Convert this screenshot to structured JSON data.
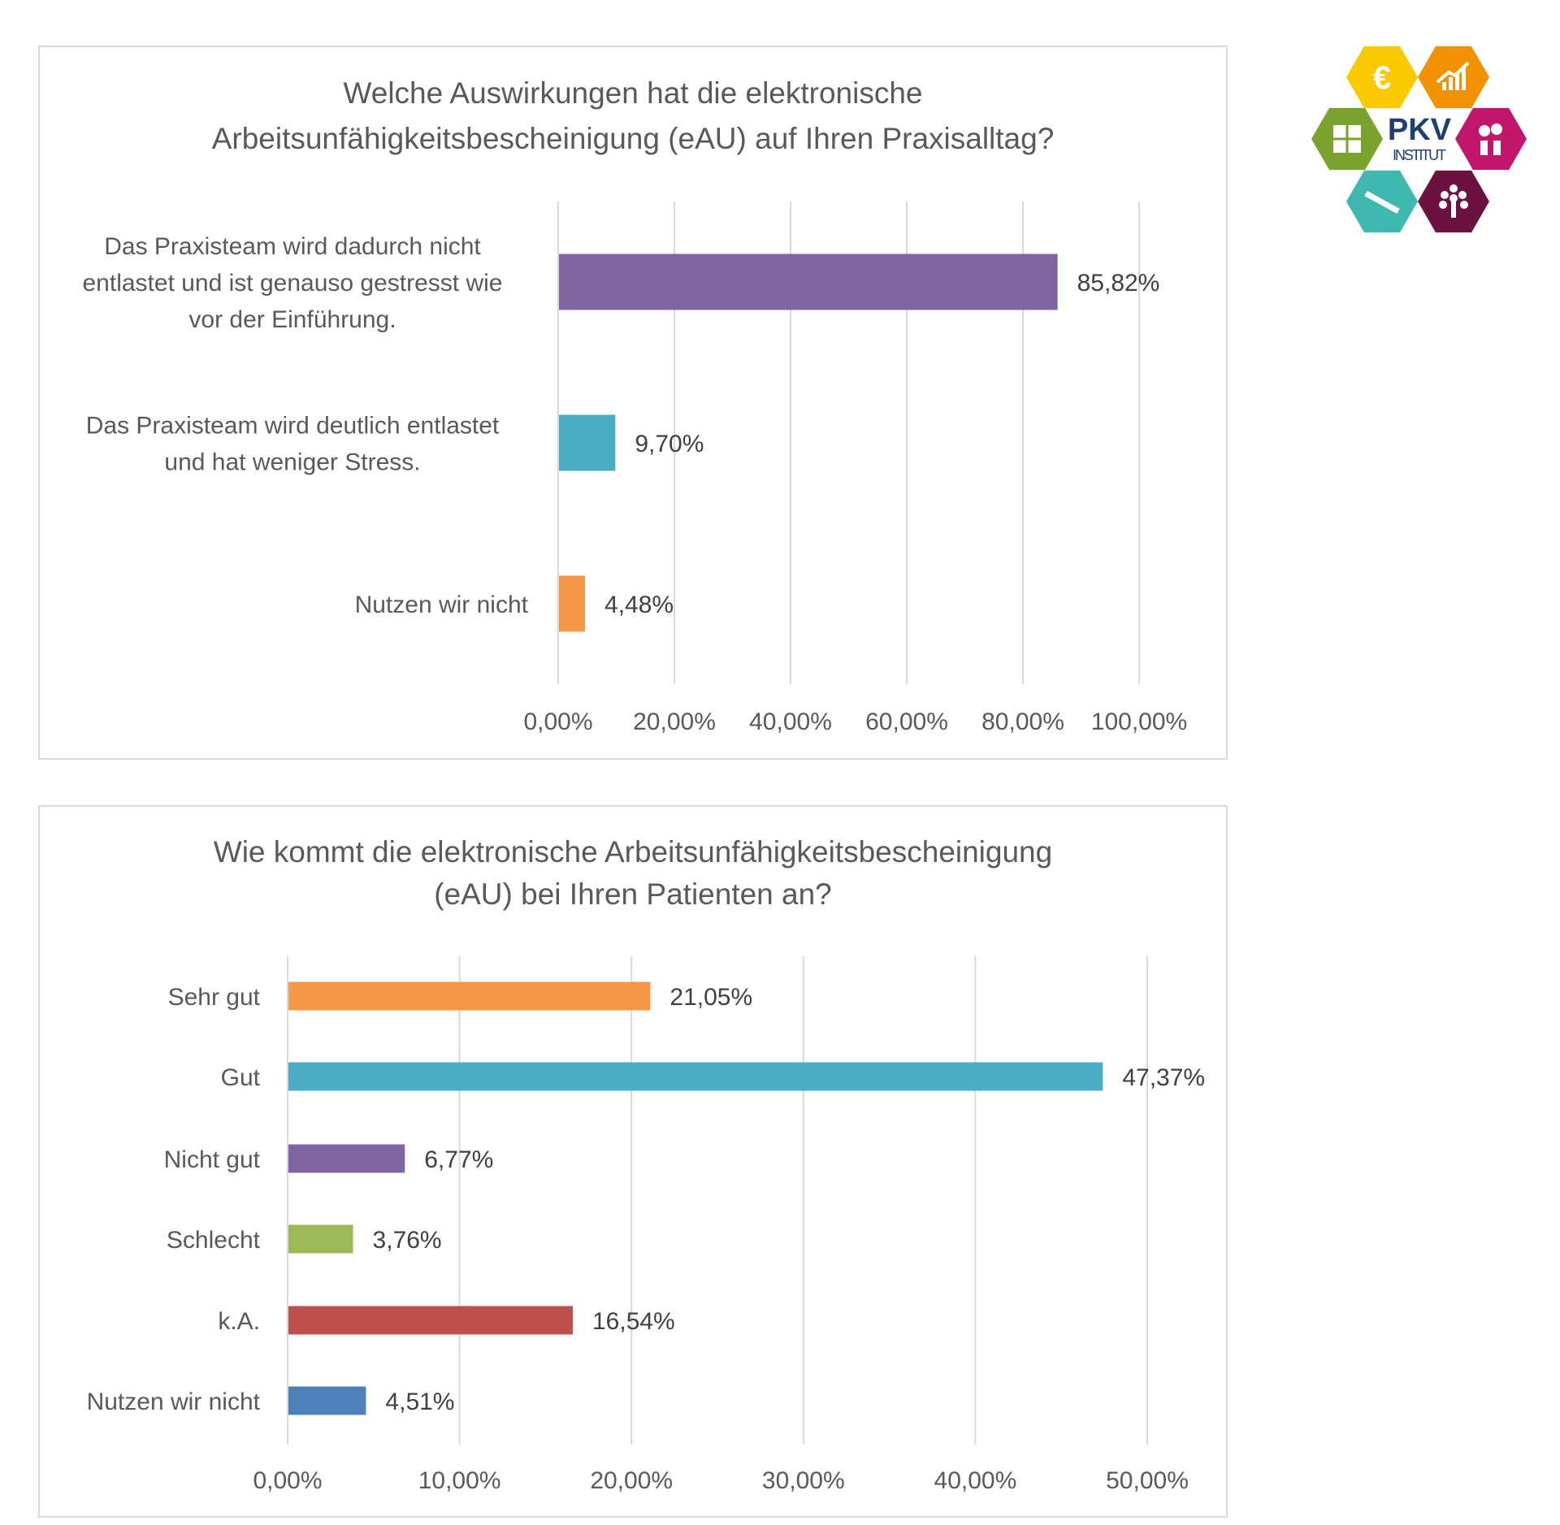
{
  "logo": {
    "text_main": "PKV",
    "text_sub": "INSTITUT",
    "icons": [
      {
        "name": "euro-icon",
        "color": "#fcc800"
      },
      {
        "name": "growth-chart-icon",
        "color": "#f39200"
      },
      {
        "name": "puzzle-icon",
        "color": "#7aa22e"
      },
      {
        "name": "people-talking-icon",
        "color": "#c2166c"
      },
      {
        "name": "syringe-icon",
        "color": "#3fb8b0"
      },
      {
        "name": "tree-icon",
        "color": "#6b1240"
      }
    ],
    "text_color": "#1f3f73"
  },
  "chart_data": [
    {
      "type": "bar",
      "orientation": "horizontal",
      "title": [
        "Welche Auswirkungen hat die elektronische",
        "Arbeitsunfähigkeitsbescheinigung (eAU) auf Ihren Praxisalltag?"
      ],
      "categories": [
        [
          "Das Praxisteam wird dadurch nicht",
          "entlastet und ist genauso gestresst wie",
          "vor der Einführung."
        ],
        [
          "Das Praxisteam wird deutlich entlastet",
          "und hat weniger Stress."
        ],
        [
          "Nutzen wir nicht"
        ]
      ],
      "values": [
        85.82,
        9.7,
        4.48
      ],
      "data_labels": [
        "85,82%",
        "9,70%",
        "4,48%"
      ],
      "colors": [
        "#8064a2",
        "#4bacc6",
        "#f79646"
      ],
      "xlim": [
        0,
        100
      ],
      "x_ticks": [
        0,
        20,
        40,
        60,
        80,
        100
      ],
      "x_tick_labels": [
        "0,00%",
        "20,00%",
        "40,00%",
        "60,00%",
        "80,00%",
        "100,00%"
      ],
      "grid": true
    },
    {
      "type": "bar",
      "orientation": "horizontal",
      "title": [
        "Wie kommt die elektronische Arbeitsunfähigkeitsbescheinigung",
        "(eAU) bei Ihren Patienten an?"
      ],
      "categories": [
        [
          "Sehr gut"
        ],
        [
          "Gut"
        ],
        [
          "Nicht gut"
        ],
        [
          "Schlecht"
        ],
        [
          "k.A."
        ],
        [
          "Nutzen wir nicht"
        ]
      ],
      "values": [
        21.05,
        47.37,
        6.77,
        3.76,
        16.54,
        4.51
      ],
      "data_labels": [
        "21,05%",
        "47,37%",
        "6,77%",
        "3,76%",
        "16,54%",
        "4,51%"
      ],
      "colors": [
        "#f79646",
        "#4bacc6",
        "#8064a2",
        "#9bbb59",
        "#c0504d",
        "#4f81bd"
      ],
      "xlim": [
        0,
        50
      ],
      "x_ticks": [
        0,
        10,
        20,
        30,
        40,
        50
      ],
      "x_tick_labels": [
        "0,00%",
        "10,00%",
        "20,00%",
        "30,00%",
        "40,00%",
        "50,00%"
      ],
      "grid": true
    }
  ]
}
